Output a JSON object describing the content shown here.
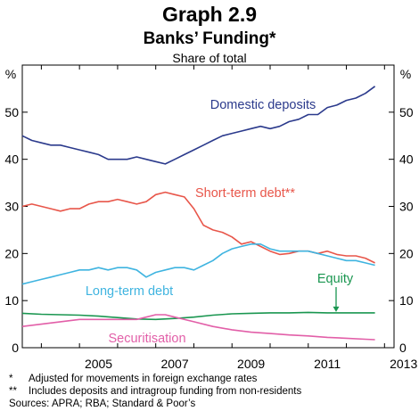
{
  "graph_label": "Graph 2.9",
  "chart_data": {
    "type": "line",
    "title": "Banks’ Funding*",
    "subtitle": "Share of total",
    "ylabel_left": "%",
    "ylabel_right": "%",
    "ylim": [
      0,
      60
    ],
    "yticks": [
      0,
      10,
      20,
      30,
      40,
      50
    ],
    "xlim": [
      2003.5,
      2013.25
    ],
    "xticks": [
      2005,
      2007,
      2009,
      2011,
      2013
    ],
    "x_gridlines": [
      2004,
      2006,
      2008,
      2010,
      2012
    ],
    "grid": false,
    "series": [
      {
        "name": "Domestic deposits",
        "color": "#2b3a8c",
        "points": [
          [
            2003.5,
            45
          ],
          [
            2003.75,
            44
          ],
          [
            2004,
            43.5
          ],
          [
            2004.25,
            43
          ],
          [
            2004.5,
            43
          ],
          [
            2004.75,
            42.5
          ],
          [
            2005,
            42
          ],
          [
            2005.25,
            41.5
          ],
          [
            2005.5,
            41
          ],
          [
            2005.75,
            40
          ],
          [
            2006,
            40
          ],
          [
            2006.25,
            40
          ],
          [
            2006.5,
            40.5
          ],
          [
            2006.75,
            40
          ],
          [
            2007,
            39.5
          ],
          [
            2007.25,
            39
          ],
          [
            2007.5,
            40
          ],
          [
            2007.75,
            41
          ],
          [
            2008,
            42
          ],
          [
            2008.25,
            43
          ],
          [
            2008.5,
            44
          ],
          [
            2008.75,
            45
          ],
          [
            2009,
            45.5
          ],
          [
            2009.25,
            46
          ],
          [
            2009.5,
            46.5
          ],
          [
            2009.75,
            47
          ],
          [
            2010,
            46.5
          ],
          [
            2010.25,
            47
          ],
          [
            2010.5,
            48
          ],
          [
            2010.75,
            48.5
          ],
          [
            2011,
            49.5
          ],
          [
            2011.25,
            49.5
          ],
          [
            2011.5,
            51
          ],
          [
            2011.75,
            51.5
          ],
          [
            2012,
            52.5
          ],
          [
            2012.25,
            53
          ],
          [
            2012.5,
            54
          ],
          [
            2012.75,
            55.5
          ]
        ]
      },
      {
        "name": "Short-term debt**",
        "color": "#e8564a",
        "points": [
          [
            2003.5,
            30
          ],
          [
            2003.75,
            30.5
          ],
          [
            2004,
            30
          ],
          [
            2004.25,
            29.5
          ],
          [
            2004.5,
            29
          ],
          [
            2004.75,
            29.5
          ],
          [
            2005,
            29.5
          ],
          [
            2005.25,
            30.5
          ],
          [
            2005.5,
            31
          ],
          [
            2005.75,
            31
          ],
          [
            2006,
            31.5
          ],
          [
            2006.25,
            31
          ],
          [
            2006.5,
            30.5
          ],
          [
            2006.75,
            31
          ],
          [
            2007,
            32.5
          ],
          [
            2007.25,
            33
          ],
          [
            2007.5,
            32.5
          ],
          [
            2007.75,
            32
          ],
          [
            2008,
            29.5
          ],
          [
            2008.25,
            26
          ],
          [
            2008.5,
            25
          ],
          [
            2008.75,
            24.5
          ],
          [
            2009,
            23.5
          ],
          [
            2009.25,
            22
          ],
          [
            2009.5,
            22.5
          ],
          [
            2009.75,
            21.5
          ],
          [
            2010,
            20.5
          ],
          [
            2010.25,
            19.8
          ],
          [
            2010.5,
            20
          ],
          [
            2010.75,
            20.5
          ],
          [
            2011,
            20.5
          ],
          [
            2011.25,
            20
          ],
          [
            2011.5,
            20.5
          ],
          [
            2011.75,
            19.8
          ],
          [
            2012,
            19.5
          ],
          [
            2012.25,
            19.5
          ],
          [
            2012.5,
            19
          ],
          [
            2012.75,
            18
          ]
        ]
      },
      {
        "name": "Long-term debt",
        "color": "#3fb4e0",
        "points": [
          [
            2003.5,
            13.5
          ],
          [
            2003.75,
            14
          ],
          [
            2004,
            14.5
          ],
          [
            2004.25,
            15
          ],
          [
            2004.5,
            15.5
          ],
          [
            2004.75,
            16
          ],
          [
            2005,
            16.5
          ],
          [
            2005.25,
            16.5
          ],
          [
            2005.5,
            17
          ],
          [
            2005.75,
            16.5
          ],
          [
            2006,
            17
          ],
          [
            2006.25,
            17
          ],
          [
            2006.5,
            16.5
          ],
          [
            2006.75,
            15
          ],
          [
            2007,
            16
          ],
          [
            2007.25,
            16.5
          ],
          [
            2007.5,
            17
          ],
          [
            2007.75,
            17
          ],
          [
            2008,
            16.5
          ],
          [
            2008.25,
            17.5
          ],
          [
            2008.5,
            18.5
          ],
          [
            2008.75,
            20
          ],
          [
            2009,
            21
          ],
          [
            2009.25,
            21.5
          ],
          [
            2009.5,
            22
          ],
          [
            2009.75,
            22
          ],
          [
            2010,
            21
          ],
          [
            2010.25,
            20.5
          ],
          [
            2010.5,
            20.5
          ],
          [
            2010.75,
            20.5
          ],
          [
            2011,
            20.5
          ],
          [
            2011.25,
            20
          ],
          [
            2011.5,
            19.5
          ],
          [
            2011.75,
            19
          ],
          [
            2012,
            18.5
          ],
          [
            2012.25,
            18.5
          ],
          [
            2012.5,
            18
          ],
          [
            2012.75,
            17.5
          ]
        ]
      },
      {
        "name": "Equity",
        "color": "#1a9650",
        "points": [
          [
            2003.5,
            7.3
          ],
          [
            2004,
            7.1
          ],
          [
            2004.5,
            7
          ],
          [
            2005,
            6.9
          ],
          [
            2005.5,
            6.7
          ],
          [
            2006,
            6.4
          ],
          [
            2006.5,
            6.1
          ],
          [
            2007,
            6.0
          ],
          [
            2007.5,
            6.2
          ],
          [
            2008,
            6.5
          ],
          [
            2008.5,
            6.9
          ],
          [
            2009,
            7.2
          ],
          [
            2009.5,
            7.3
          ],
          [
            2010,
            7.4
          ],
          [
            2010.5,
            7.4
          ],
          [
            2011,
            7.5
          ],
          [
            2011.5,
            7.4
          ],
          [
            2012,
            7.4
          ],
          [
            2012.5,
            7.4
          ],
          [
            2012.75,
            7.4
          ]
        ]
      },
      {
        "name": "Securitisation",
        "color": "#e25fa8",
        "points": [
          [
            2003.5,
            4.5
          ],
          [
            2004,
            5
          ],
          [
            2004.5,
            5.5
          ],
          [
            2005,
            6
          ],
          [
            2005.5,
            6
          ],
          [
            2006,
            6
          ],
          [
            2006.5,
            6
          ],
          [
            2006.75,
            6.5
          ],
          [
            2007,
            7
          ],
          [
            2007.25,
            7
          ],
          [
            2007.5,
            6.5
          ],
          [
            2008,
            5.5
          ],
          [
            2008.5,
            4.5
          ],
          [
            2009,
            3.8
          ],
          [
            2009.5,
            3.3
          ],
          [
            2010,
            3
          ],
          [
            2010.5,
            2.7
          ],
          [
            2011,
            2.5
          ],
          [
            2011.5,
            2.2
          ],
          [
            2012,
            2
          ],
          [
            2012.5,
            1.8
          ],
          [
            2012.75,
            1.7
          ]
        ]
      }
    ],
    "annotations": [
      {
        "text": "Domestic deposits",
        "series": "Domestic deposits"
      },
      {
        "text": "Short-term debt**",
        "series": "Short-term debt**"
      },
      {
        "text": "Long-term debt",
        "series": "Long-term debt"
      },
      {
        "text": "Equity",
        "series": "Equity"
      },
      {
        "text": "Securitisation",
        "series": "Securitisation"
      }
    ]
  },
  "footnotes": [
    {
      "mark": "*",
      "text": "Adjusted for movements in foreign exchange rates"
    },
    {
      "mark": "**",
      "text": "Includes deposits and intragroup funding from non-residents"
    },
    {
      "mark": "",
      "text": "Sources: APRA; RBA; Standard & Poor’s"
    }
  ]
}
